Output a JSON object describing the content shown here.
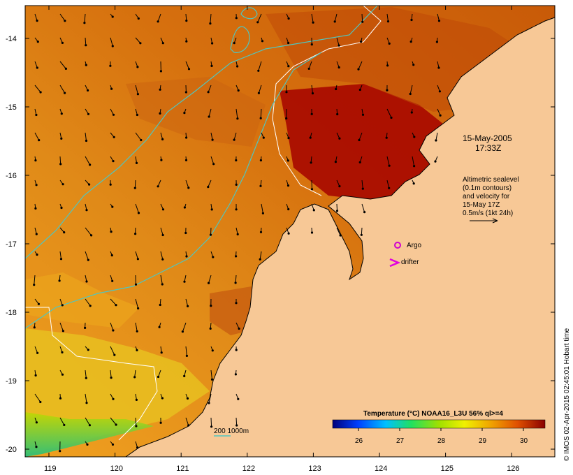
{
  "date_label": "15-May-2005",
  "time_label": "17:33Z",
  "altimetry": {
    "line1": "Altimetric sealevel",
    "line2": "(0.1m contours)",
    "line3": "and velocity for",
    "line4": "15-May 17Z",
    "line5": "0.5m/s (1kt 24h)"
  },
  "legend": {
    "argo": "Argo",
    "drifter": "drifter",
    "isobath": "200  1000m"
  },
  "colorbar": {
    "title": "Temperature (°C) NOAA16_L3U 56% ql>=4",
    "ticks": [
      "26",
      "27",
      "28",
      "29",
      "30"
    ]
  },
  "axes": {
    "lon_ticks": [
      "119",
      "120",
      "121",
      "122",
      "123",
      "124",
      "125",
      "126"
    ],
    "lat_ticks": [
      "-14",
      "-15",
      "-16",
      "-17",
      "-18",
      "-19",
      "-20"
    ]
  },
  "credit": "© IMOS 02-Apr-2015 02:45:01 Hobart time",
  "colors": {
    "land": "#f7c896",
    "cyan_isobath": "#4fc6c0",
    "argo": "#d000d0",
    "drifter": "#e000e0"
  }
}
